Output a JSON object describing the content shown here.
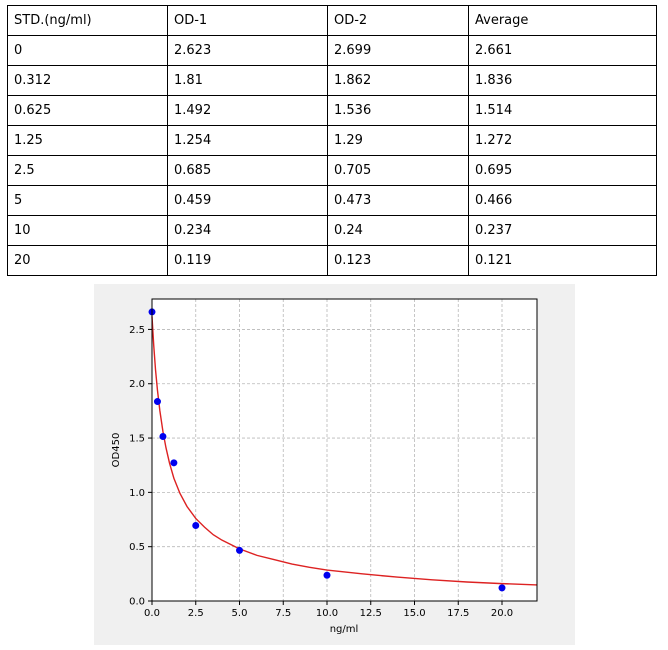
{
  "table": {
    "headers": [
      "STD.(ng/ml)",
      "OD-1",
      "OD-2",
      "Average"
    ],
    "rows": [
      [
        "0",
        "2.623",
        "2.699",
        "2.661"
      ],
      [
        "0.312",
        "1.81",
        "1.862",
        "1.836"
      ],
      [
        "0.625",
        "1.492",
        "1.536",
        "1.514"
      ],
      [
        "1.25",
        "1.254",
        "1.29",
        "1.272"
      ],
      [
        "2.5",
        "0.685",
        "0.705",
        "0.695"
      ],
      [
        "5",
        "0.459",
        "0.473",
        "0.466"
      ],
      [
        "10",
        "0.234",
        "0.24",
        "0.237"
      ],
      [
        "20",
        "0.119",
        "0.123",
        "0.121"
      ]
    ]
  },
  "chart_data": {
    "type": "scatter",
    "xlabel": "ng/ml",
    "ylabel": "OD450",
    "xlim": [
      0,
      22
    ],
    "ylim": [
      0,
      2.78
    ],
    "xticks": [
      "0.0",
      "2.5",
      "5.0",
      "7.5",
      "10.0",
      "12.5",
      "15.0",
      "17.5",
      "20.0"
    ],
    "yticks": [
      "0.0",
      "0.5",
      "1.0",
      "1.5",
      "2.0",
      "2.5"
    ],
    "grid": true,
    "points": {
      "x": [
        0,
        0.312,
        0.625,
        1.25,
        2.5,
        5,
        10,
        20
      ],
      "y": [
        2.661,
        1.836,
        1.514,
        1.272,
        0.695,
        0.466,
        0.237,
        0.121
      ],
      "color": "#0000ee"
    },
    "fit_curve": {
      "color": "#dd2222",
      "x": [
        0,
        0.1,
        0.2,
        0.312,
        0.45,
        0.625,
        0.8,
        1.0,
        1.25,
        1.6,
        2.0,
        2.5,
        3.0,
        3.5,
        4.0,
        5.0,
        6.0,
        7.0,
        8.0,
        9.0,
        10.0,
        12.0,
        14.0,
        16.0,
        18.0,
        20.0,
        22.0
      ],
      "y": [
        2.62,
        2.35,
        2.13,
        1.94,
        1.75,
        1.56,
        1.41,
        1.27,
        1.13,
        0.99,
        0.87,
        0.76,
        0.68,
        0.61,
        0.56,
        0.48,
        0.42,
        0.38,
        0.34,
        0.31,
        0.285,
        0.25,
        0.22,
        0.195,
        0.175,
        0.16,
        0.148
      ]
    }
  }
}
